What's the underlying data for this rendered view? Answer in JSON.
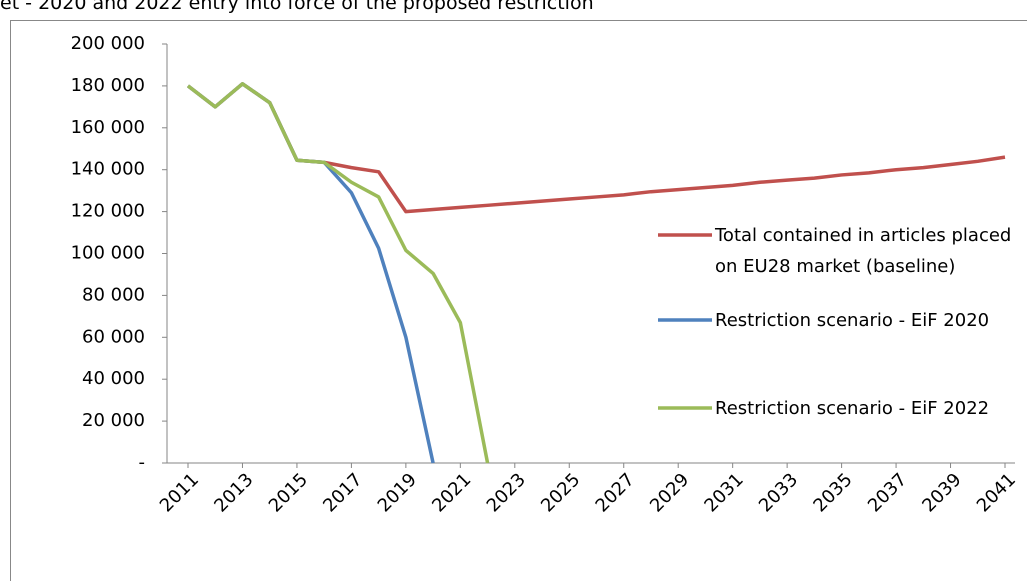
{
  "chart_data": {
    "type": "line",
    "title": "et - 2020 and 2022 entry into force of the proposed restriction",
    "x": [
      2011,
      2012,
      2013,
      2014,
      2015,
      2016,
      2017,
      2018,
      2019,
      2020,
      2021,
      2022,
      2023,
      2024,
      2025,
      2026,
      2027,
      2028,
      2029,
      2030,
      2031,
      2032,
      2033,
      2034,
      2035,
      2036,
      2037,
      2038,
      2039,
      2040,
      2041
    ],
    "series": [
      {
        "name": "Total contained in articles placed on EU28 market (baseline)",
        "color": "#c0504d",
        "values": [
          180000,
          170000,
          181000,
          172000,
          144500,
          143500,
          141000,
          139000,
          120000,
          121000,
          122000,
          123000,
          124000,
          125000,
          126000,
          127000,
          128000,
          129500,
          130500,
          131500,
          132500,
          134000,
          135000,
          136000,
          137500,
          138500,
          140000,
          141000,
          142500,
          144000,
          146000
        ]
      },
      {
        "name": "Restriction scenario - EiF 2020",
        "color": "#4f81bd",
        "values": [
          180000,
          170000,
          181000,
          172000,
          144500,
          143500,
          129000,
          102500,
          60000,
          0,
          null,
          null,
          null,
          null,
          null,
          null,
          null,
          null,
          null,
          null,
          null,
          null,
          null,
          null,
          null,
          null,
          null,
          null,
          null,
          null,
          null
        ]
      },
      {
        "name": "Restriction scenario - EiF 2022",
        "color": "#9bbb59",
        "values": [
          180000,
          170000,
          181000,
          172000,
          144500,
          143500,
          134000,
          127000,
          101500,
          90500,
          67000,
          0,
          null,
          null,
          null,
          null,
          null,
          null,
          null,
          null,
          null,
          null,
          null,
          null,
          null,
          null,
          null,
          null,
          null,
          null,
          null
        ]
      }
    ],
    "xlim": [
      2011,
      2041
    ],
    "xticks": [
      2011,
      2013,
      2015,
      2017,
      2019,
      2021,
      2023,
      2025,
      2027,
      2029,
      2031,
      2033,
      2035,
      2037,
      2039,
      2041
    ],
    "ylim": [
      0,
      200000
    ],
    "yticks": [
      {
        "value": 0,
        "label": "-"
      },
      {
        "value": 20000,
        "label": "20 000"
      },
      {
        "value": 40000,
        "label": "40 000"
      },
      {
        "value": 60000,
        "label": "60 000"
      },
      {
        "value": 80000,
        "label": "80 000"
      },
      {
        "value": 100000,
        "label": "100 000"
      },
      {
        "value": 120000,
        "label": "120 000"
      },
      {
        "value": 140000,
        "label": "140 000"
      },
      {
        "value": 160000,
        "label": "160 000"
      },
      {
        "value": 180000,
        "label": "180 000"
      },
      {
        "value": 200000,
        "label": "200 000"
      }
    ],
    "grid": false,
    "legend": "right"
  }
}
